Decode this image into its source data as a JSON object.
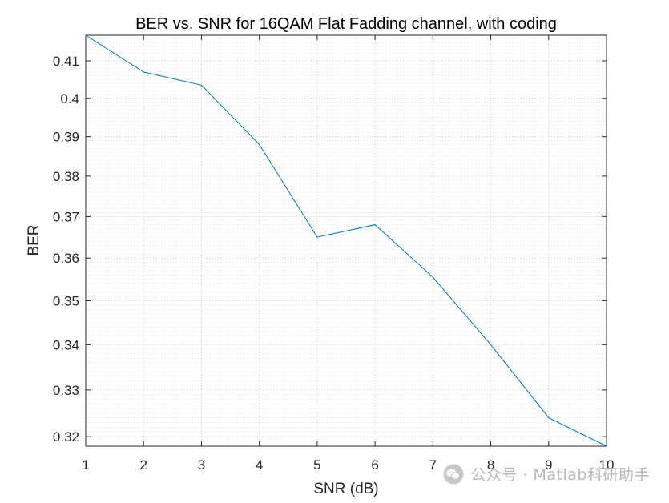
{
  "chart_data": {
    "type": "line",
    "title": "BER vs. SNR for 16QAM Flat Fadding channel, with coding",
    "xlabel": "SNR (dB)",
    "ylabel": "BER",
    "xlim": [
      1,
      10
    ],
    "ylim": [
      0.318,
      0.417
    ],
    "yscale": "log",
    "xticks": [
      1,
      2,
      3,
      4,
      5,
      6,
      7,
      8,
      9,
      10
    ],
    "xtick_labels": [
      "1",
      "2",
      "3",
      "4",
      "5",
      "6",
      "7",
      "8",
      "9",
      "10"
    ],
    "yticks": [
      0.32,
      0.33,
      0.34,
      0.35,
      0.36,
      0.37,
      0.38,
      0.39,
      0.4,
      0.41
    ],
    "ytick_labels": [
      "0.32",
      "0.33",
      "0.34",
      "0.35",
      "0.36",
      "0.37",
      "0.38",
      "0.39",
      "0.4",
      "0.41"
    ],
    "grid": true,
    "minor_grid": true,
    "box": true,
    "line_color": "#0072BD",
    "series": [
      {
        "x": [
          1,
          2,
          3,
          4,
          5,
          6,
          7,
          8,
          9,
          10
        ],
        "values": [
          0.417,
          0.407,
          0.4035,
          0.388,
          0.365,
          0.368,
          0.3555,
          0.34,
          0.324,
          0.318
        ]
      }
    ]
  },
  "watermark": {
    "text": "公众号 · Matlab科研助手",
    "icon": "wechat-icon"
  }
}
